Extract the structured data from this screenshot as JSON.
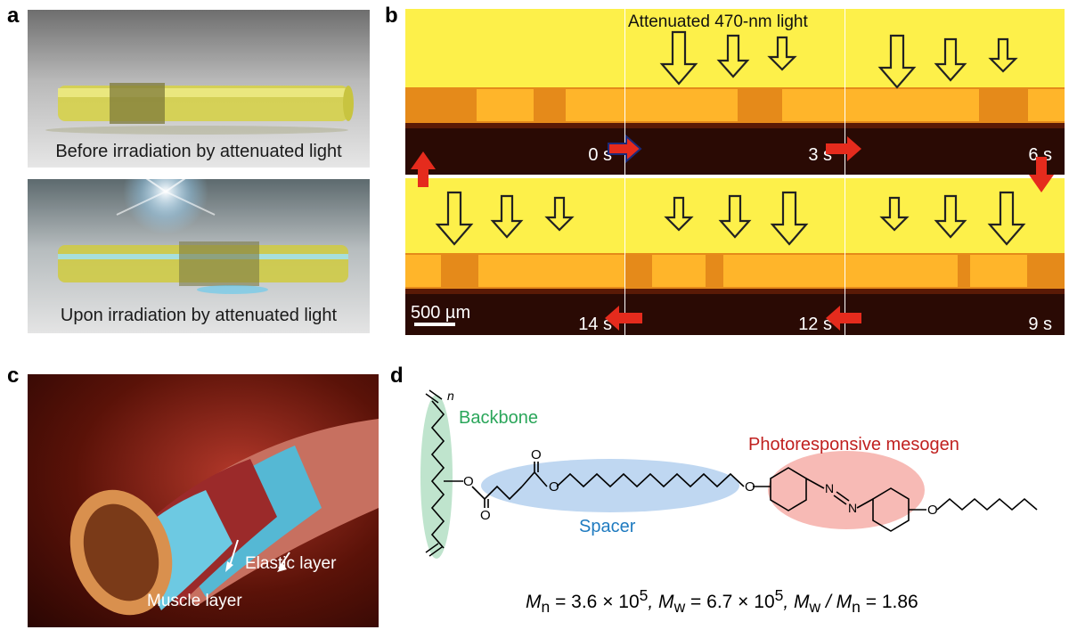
{
  "panels": {
    "a": "a",
    "b": "b",
    "c": "c",
    "d": "d"
  },
  "panel_a": {
    "caption_top": "Before irradiation by attenuated light",
    "caption_bottom": "Upon irradiation by attenuated light"
  },
  "panel_b": {
    "light_label": "Attenuated 470-nm light",
    "times": [
      "0 s",
      "3 s",
      "6 s",
      "14 s",
      "12 s",
      "9 s"
    ],
    "scale_bar": "500 µm"
  },
  "panel_c": {
    "elastic_label": "Elastic layer",
    "muscle_label": "Muscle layer"
  },
  "panel_d": {
    "backbone": "Backbone",
    "spacer": "Spacer",
    "mesogen": "Photoresponsive mesogen",
    "n_label": "n",
    "o": "O",
    "n_atom": "N",
    "formula": {
      "mn_sym": "M",
      "mn_sub": "n",
      "mn_val": " = 3.6 × 10",
      "mn_exp": "5",
      "mw_sym": ", M",
      "mw_sub": "w",
      "mw_val": " = 6.7 × 10",
      "mw_exp": "5",
      "ratio_sym1": ", M",
      "ratio_sub1": "w",
      "ratio_slash": " / M",
      "ratio_sub2": "n",
      "ratio_val": " = 1.86"
    },
    "colors": {
      "backbone": "#2aa65a",
      "spacer": "#1f7bc0",
      "mesogen": "#c0201f"
    }
  }
}
